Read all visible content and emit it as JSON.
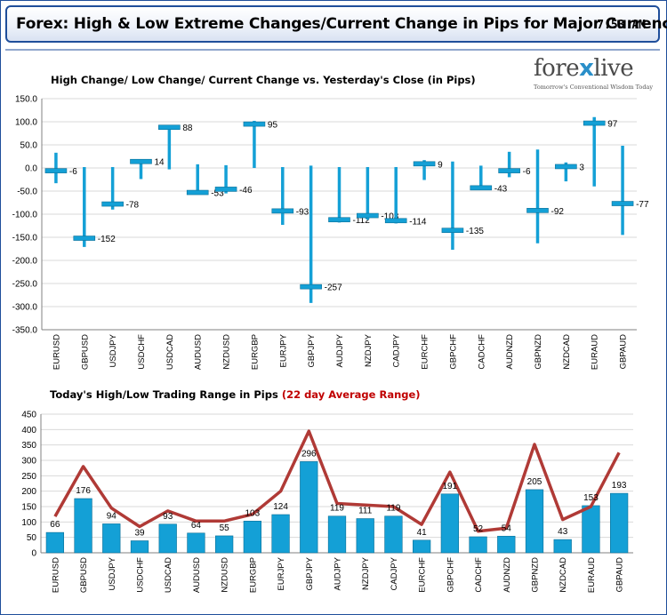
{
  "header": {
    "title": "Forex:  High & Low Extreme Changes/Current Change in Pips for Major Currency",
    "time": "7:53 AM"
  },
  "logo": {
    "brand_left": "fore",
    "brand_x": "x",
    "brand_right": "live",
    "tagline": "Tomorrow's Conventional Wisdom Today"
  },
  "colors": {
    "accent": "#1f4e9a",
    "bar": "#14a0d6",
    "line": "#b03a36",
    "highlight": "#c00000"
  },
  "chart_data": [
    {
      "type": "bar",
      "title": "High Change/ Low Change/ Current Change vs. Yesterday's Close (in Pips)",
      "categories": [
        "EURUSD",
        "GBPUSD",
        "USDJPY",
        "USDCHF",
        "USDCAD",
        "AUDUSD",
        "NZDUSD",
        "EURGBP",
        "EURJPY",
        "GBPJPY",
        "AUDJPY",
        "NZDJPY",
        "CADJPY",
        "EURCHF",
        "GBPCHF",
        "CADCHF",
        "AUDNZD",
        "GBPNZD",
        "NZDCAD",
        "EURAUD",
        "GBPAUD"
      ],
      "high": [
        33,
        2,
        2,
        18,
        92,
        8,
        6,
        102,
        2,
        5,
        2,
        2,
        2,
        17,
        14,
        5,
        35,
        40,
        12,
        110,
        48
      ],
      "low": [
        -33,
        -171,
        -90,
        -24,
        -3,
        -56,
        -55,
        0,
        -123,
        -292,
        -118,
        -112,
        -120,
        -26,
        -177,
        -48,
        -20,
        -163,
        -29,
        -40,
        -145
      ],
      "current": [
        -6,
        -152,
        -78,
        14,
        88,
        -53,
        -46,
        95,
        -93,
        -257,
        -112,
        -103,
        -114,
        9,
        -135,
        -43,
        -6,
        -92,
        3,
        97,
        -77
      ],
      "labels": [
        "-6",
        "-152",
        "-78",
        "14",
        "88",
        "-53",
        "-46",
        "95",
        "-93",
        "-257",
        "-112",
        "-103",
        "-114",
        "9",
        "-135",
        "-43",
        "-6",
        "-92",
        "3",
        "97",
        "-77"
      ],
      "ylim": [
        -350,
        150
      ],
      "yticks": [
        "150.0",
        "100.0",
        "50.0",
        "0.0",
        "-50.0",
        "-100.0",
        "-150.0",
        "-200.0",
        "-250.0",
        "-300.0",
        "-350.0"
      ],
      "grid": true
    },
    {
      "type": "bar",
      "title": "Today's High/Low Trading Range in Pips",
      "title_suffix": "(22 day Average Range)",
      "categories": [
        "EURUSD",
        "GBPUSD",
        "USDJPY",
        "USDCHF",
        "USDCAD",
        "AUDUSD",
        "NZDUSD",
        "EURGBP",
        "EURJPY",
        "GBPJPY",
        "AUDJPY",
        "NZDJPY",
        "CADJPY",
        "EURCHF",
        "GBPCHF",
        "CADCHF",
        "AUDNZD",
        "GBPNZD",
        "NZDCAD",
        "EURAUD",
        "GBPAUD"
      ],
      "values": [
        66,
        176,
        94,
        39,
        93,
        64,
        55,
        103,
        124,
        296,
        119,
        111,
        119,
        41,
        191,
        52,
        54,
        205,
        43,
        153,
        193
      ],
      "average": [
        118,
        280,
        145,
        85,
        136,
        103,
        103,
        125,
        200,
        395,
        160,
        155,
        150,
        92,
        262,
        70,
        80,
        352,
        108,
        150,
        325
      ],
      "ylim": [
        0,
        450
      ],
      "yticks": [
        "450",
        "400",
        "350",
        "300",
        "250",
        "200",
        "150",
        "100",
        "50",
        "0"
      ],
      "grid": true
    }
  ]
}
